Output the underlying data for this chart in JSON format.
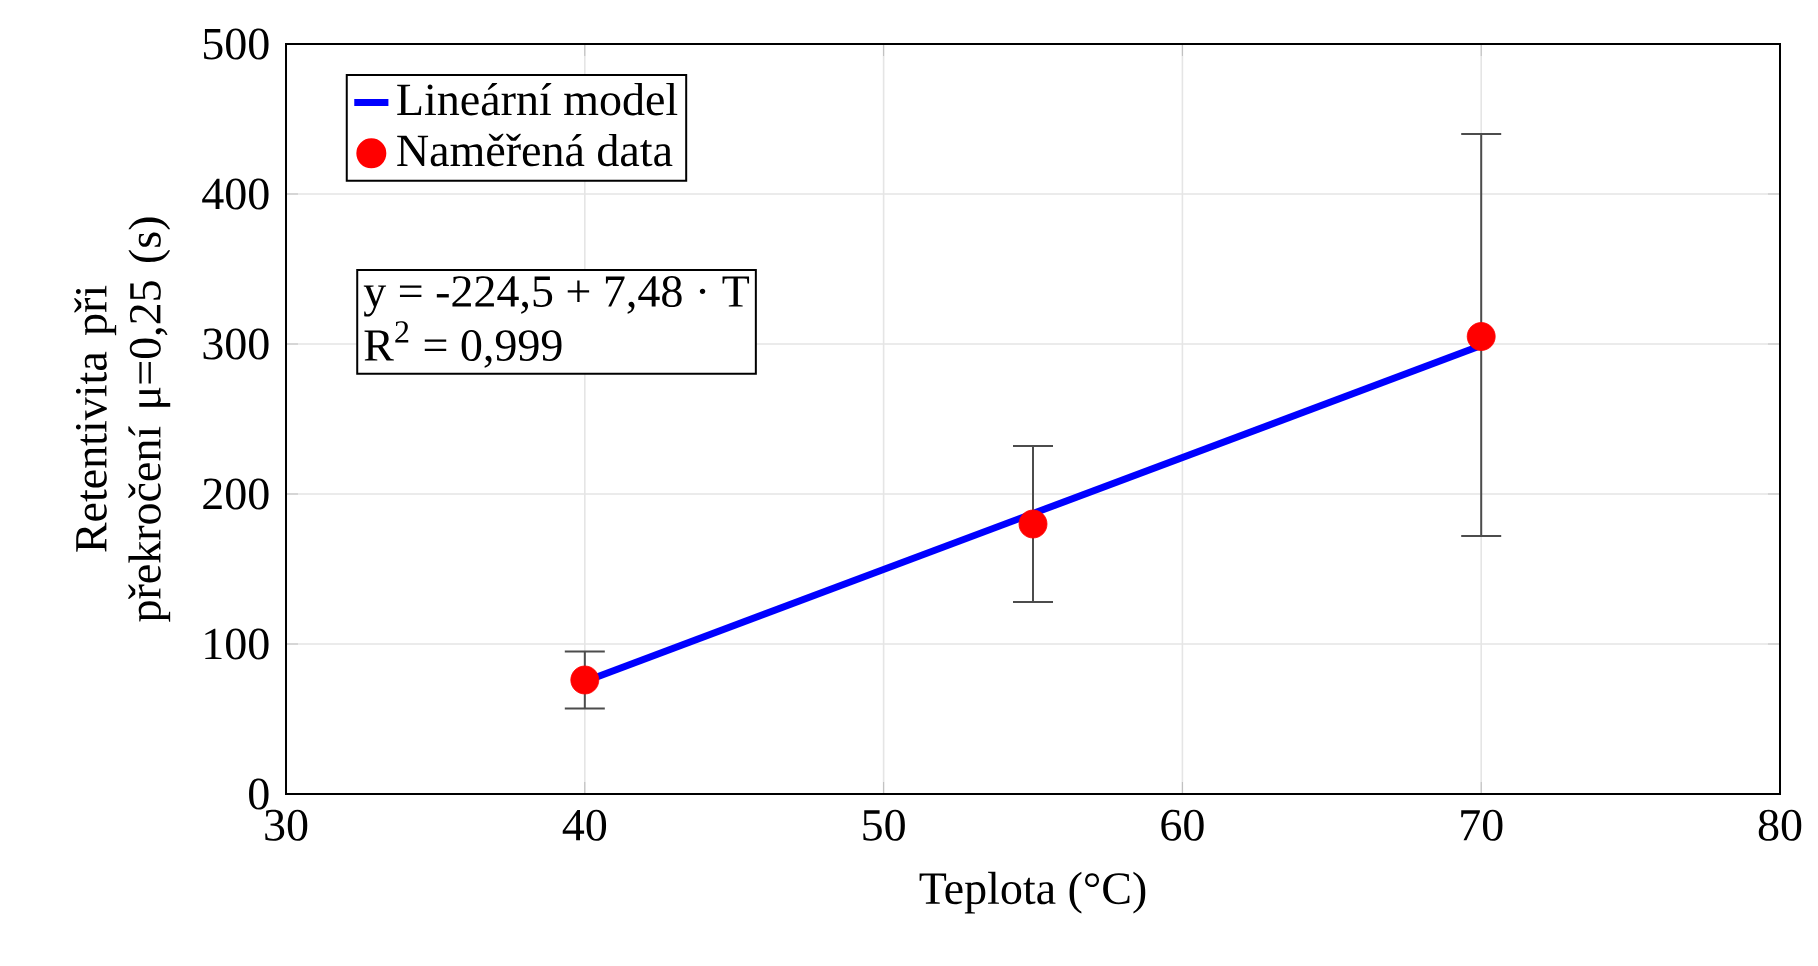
{
  "chart_data": {
    "type": "scatter",
    "xlabel": "Teplota (°C)",
    "ylabel": "Retentivita při překročení μ=0,25 (s)",
    "xlim": [
      30,
      80
    ],
    "xticks": [
      30,
      40,
      50,
      60,
      70,
      80
    ],
    "ylim": [
      0,
      500
    ],
    "yticks": [
      0,
      100,
      200,
      300,
      400,
      500
    ],
    "grid": true,
    "legend": "top left",
    "series": [
      {
        "name": "Lineární model",
        "type": "line",
        "color": "#0000ff",
        "marker": "none",
        "x": [
          40,
          70
        ],
        "values": [
          75,
          299
        ]
      },
      {
        "name": "Naměřená data",
        "color": "#ff0000",
        "marker": "circle",
        "x": [
          40,
          55,
          70
        ],
        "values": [
          76,
          180,
          305
        ],
        "errors": [
          [
            57,
            95
          ],
          [
            128,
            232
          ],
          [
            172,
            440
          ]
        ]
      }
    ],
    "annotations": [
      "y = -224,5 + 7,48 · T",
      "R$^{2}$ = 0,999"
    ]
  }
}
